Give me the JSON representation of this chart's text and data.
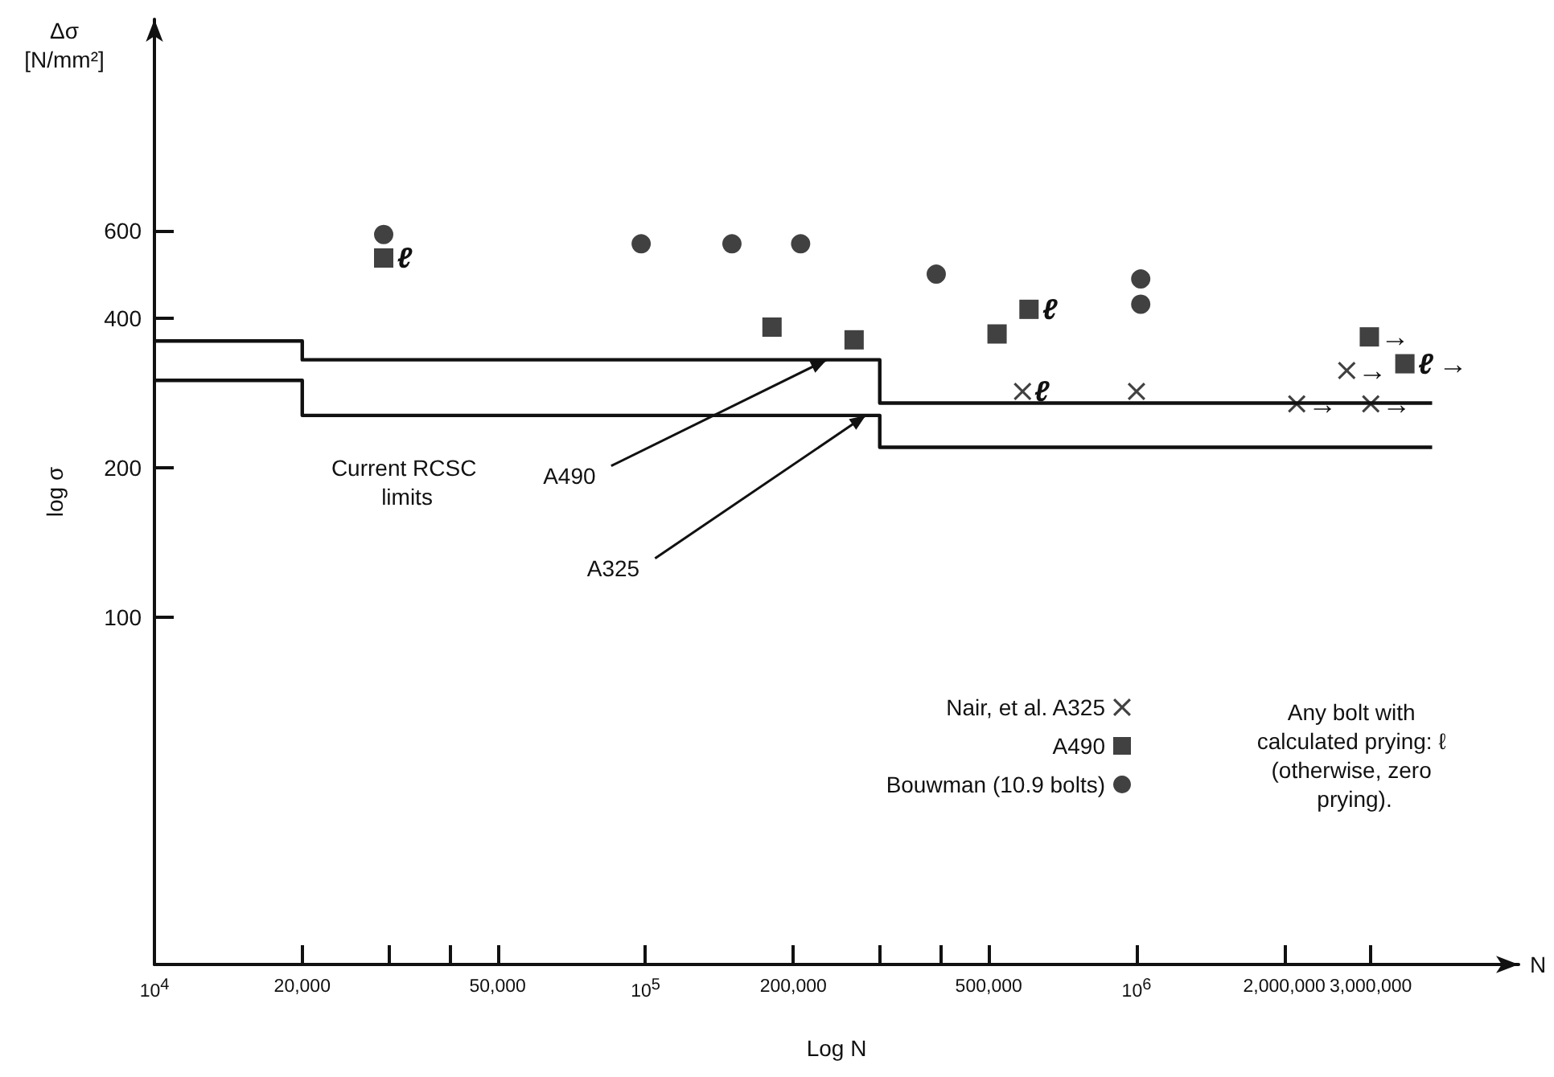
{
  "chart_data": {
    "type": "scatter",
    "xlabel": "Log N",
    "ylabel": "log σ",
    "log": "xy",
    "xlim": [
      10000,
      6000000
    ],
    "xticks": [
      {
        "value": 10000,
        "label": "10$^{4}$"
      },
      "20,000",
      {
        "value": 30000,
        "label": null
      },
      {
        "value": 40000,
        "label": null
      },
      "50,000",
      {
        "value": 100000,
        "label": "10$^{5}$"
      },
      "200,000",
      {
        "value": 300000,
        "label": null
      },
      {
        "value": 400000,
        "label": null
      },
      "500,000",
      {
        "value": 1000000,
        "label": "10$^{6}$"
      },
      "2,000,000",
      "3,000,000"
    ],
    "ylim": [
      20,
      1600
    ],
    "yticks": [
      100,
      200,
      400,
      600
    ],
    "grid": false,
    "legend": "bottom right",
    "series": [
      {
        "type": "step",
        "color": "#111111",
        "marker": "none",
        "x": [
          10000,
          20000,
          300000,
          4000000
        ],
        "values": [
          360,
          330,
          270,
          270
        ]
      },
      {
        "type": "step",
        "color": "#111111",
        "marker": "none",
        "x": [
          10000,
          20000,
          300000,
          4000000
        ],
        "values": [
          300,
          255,
          220,
          220
        ]
      },
      {
        "name": "Nair, et al. A325",
        "color": "#111111",
        "marker": "cross",
        "x": [
          586000,
          1000000,
          2120000,
          3000000,
          2680000
        ],
        "values": [
          285,
          285,
          269,
          269,
          314
        ]
      },
      {
        "name": "A490",
        "color": "#111111",
        "marker": "square",
        "x": [
          29300,
          181000,
          266000,
          520000,
          604000,
          2980000,
          3520000
        ],
        "values": [
          529,
          384,
          362,
          372,
          417,
          367,
          324
        ]
      },
      {
        "name": "Bouwman (10.9 bolts)",
        "color": "#111111",
        "marker": "circle",
        "x": [
          29300,
          98000,
          150000,
          207000,
          391000,
          1020000,
          1020000
        ],
        "values": [
          590,
          565,
          565,
          565,
          491,
          480,
          427
        ]
      }
    ],
    "annotations": [
      "Current RCSC limits",
      {
        "text": "A490",
        "x": 234000,
        "y": 330
      },
      {
        "text": "A325",
        "x": 281000,
        "y": 255
      },
      "Δσ [N/mm²]",
      "N",
      "Any bolt with calculated prying: ℓ (otherwise, zero prying).",
      {
        "text": "ℓ",
        "x": 29300,
        "y": 529
      },
      {
        "text": "ℓ",
        "x": 604000,
        "y": 417
      },
      {
        "text": "ℓ",
        "x": 586000,
        "y": 285
      },
      {
        "text": "ℓ",
        "x": 3520000,
        "y": 324
      },
      {
        "text": "→",
        "x": 2980000,
        "y": 367
      },
      {
        "text": "→",
        "x": 2680000,
        "y": 314
      },
      {
        "text": "→",
        "x": 3520000,
        "y": 324
      },
      {
        "text": "→",
        "x": 2120000,
        "y": 269
      },
      {
        "text": "→",
        "x": 3000000,
        "y": 269
      }
    ]
  }
}
